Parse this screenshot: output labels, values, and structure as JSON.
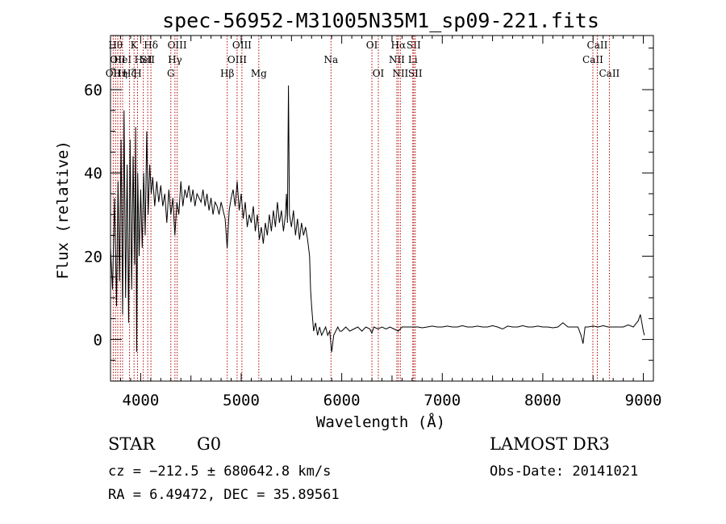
{
  "chart_data": {
    "type": "line",
    "title": "spec-56952-M31005N35M1_sp09-221.fits",
    "xlabel": "Wavelength (Å)",
    "ylabel": "Flux (relative)",
    "xlim": [
      3700,
      9100
    ],
    "ylim": [
      -10,
      73
    ],
    "xticks": [
      4000,
      5000,
      6000,
      7000,
      8000,
      9000
    ],
    "yticks": [
      0,
      20,
      40,
      60
    ],
    "grid": false,
    "series": [
      {
        "points": [
          [
            3700,
            22
          ],
          [
            3720,
            12
          ],
          [
            3740,
            34
          ],
          [
            3760,
            8
          ],
          [
            3775,
            38
          ],
          [
            3790,
            14
          ],
          [
            3805,
            48
          ],
          [
            3820,
            6
          ],
          [
            3835,
            55
          ],
          [
            3850,
            10
          ],
          [
            3865,
            42
          ],
          [
            3880,
            4
          ],
          [
            3895,
            48
          ],
          [
            3910,
            12
          ],
          [
            3925,
            44
          ],
          [
            3940,
            18
          ],
          [
            3950,
            51
          ],
          [
            3960,
            -3
          ],
          [
            3970,
            40
          ],
          [
            3985,
            20
          ],
          [
            4000,
            36
          ],
          [
            4015,
            22
          ],
          [
            4030,
            40
          ],
          [
            4045,
            25
          ],
          [
            4060,
            50
          ],
          [
            4075,
            30
          ],
          [
            4090,
            42
          ],
          [
            4105,
            35
          ],
          [
            4120,
            39
          ],
          [
            4140,
            32
          ],
          [
            4160,
            38
          ],
          [
            4180,
            33
          ],
          [
            4200,
            37
          ],
          [
            4220,
            32
          ],
          [
            4240,
            35
          ],
          [
            4260,
            28
          ],
          [
            4280,
            36
          ],
          [
            4300,
            30
          ],
          [
            4320,
            34
          ],
          [
            4340,
            25
          ],
          [
            4360,
            33
          ],
          [
            4380,
            30
          ],
          [
            4400,
            38
          ],
          [
            4420,
            32
          ],
          [
            4440,
            36
          ],
          [
            4460,
            34
          ],
          [
            4480,
            37
          ],
          [
            4500,
            33
          ],
          [
            4520,
            36
          ],
          [
            4540,
            32
          ],
          [
            4560,
            35
          ],
          [
            4580,
            34
          ],
          [
            4600,
            33
          ],
          [
            4620,
            36
          ],
          [
            4640,
            32
          ],
          [
            4660,
            35
          ],
          [
            4680,
            31
          ],
          [
            4700,
            34
          ],
          [
            4720,
            30
          ],
          [
            4740,
            33
          ],
          [
            4760,
            32
          ],
          [
            4780,
            30
          ],
          [
            4800,
            33
          ],
          [
            4820,
            31
          ],
          [
            4840,
            29
          ],
          [
            4860,
            22
          ],
          [
            4880,
            31
          ],
          [
            4900,
            34
          ],
          [
            4920,
            36
          ],
          [
            4940,
            32
          ],
          [
            4960,
            38
          ],
          [
            4980,
            31
          ],
          [
            5000,
            35
          ],
          [
            5020,
            29
          ],
          [
            5040,
            33
          ],
          [
            5060,
            27
          ],
          [
            5080,
            30
          ],
          [
            5100,
            28
          ],
          [
            5120,
            32
          ],
          [
            5140,
            26
          ],
          [
            5160,
            30
          ],
          [
            5180,
            24
          ],
          [
            5200,
            27
          ],
          [
            5220,
            23
          ],
          [
            5240,
            28
          ],
          [
            5260,
            25
          ],
          [
            5280,
            30
          ],
          [
            5300,
            26
          ],
          [
            5320,
            31
          ],
          [
            5340,
            27
          ],
          [
            5360,
            33
          ],
          [
            5380,
            28
          ],
          [
            5400,
            31
          ],
          [
            5420,
            26
          ],
          [
            5440,
            30
          ],
          [
            5450,
            35
          ],
          [
            5460,
            28
          ],
          [
            5470,
            61
          ],
          [
            5480,
            30
          ],
          [
            5500,
            27
          ],
          [
            5520,
            31
          ],
          [
            5540,
            25
          ],
          [
            5560,
            29
          ],
          [
            5580,
            24
          ],
          [
            5600,
            28
          ],
          [
            5620,
            25
          ],
          [
            5640,
            27
          ],
          [
            5660,
            24
          ],
          [
            5680,
            20
          ],
          [
            5690,
            12
          ],
          [
            5700,
            8
          ],
          [
            5710,
            5
          ],
          [
            5720,
            2
          ],
          [
            5740,
            4
          ],
          [
            5760,
            1
          ],
          [
            5780,
            3
          ],
          [
            5800,
            1
          ],
          [
            5820,
            2
          ],
          [
            5840,
            3
          ],
          [
            5860,
            1
          ],
          [
            5880,
            2
          ],
          [
            5900,
            -3
          ],
          [
            5920,
            1
          ],
          [
            5940,
            2
          ],
          [
            5960,
            3
          ],
          [
            5980,
            2
          ],
          [
            6000,
            2
          ],
          [
            6040,
            3
          ],
          [
            6080,
            2
          ],
          [
            6120,
            2.5
          ],
          [
            6160,
            3
          ],
          [
            6200,
            2
          ],
          [
            6240,
            3
          ],
          [
            6280,
            2.5
          ],
          [
            6300,
            1.5
          ],
          [
            6320,
            3
          ],
          [
            6360,
            2.5
          ],
          [
            6400,
            3
          ],
          [
            6440,
            2.5
          ],
          [
            6480,
            3
          ],
          [
            6520,
            2.5
          ],
          [
            6563,
            2
          ],
          [
            6600,
            3
          ],
          [
            6640,
            3
          ],
          [
            6680,
            3
          ],
          [
            6720,
            3
          ],
          [
            6760,
            3
          ],
          [
            6800,
            2.8
          ],
          [
            6850,
            3
          ],
          [
            6900,
            3.2
          ],
          [
            6950,
            3
          ],
          [
            7000,
            3
          ],
          [
            7050,
            3.2
          ],
          [
            7100,
            3
          ],
          [
            7150,
            3
          ],
          [
            7200,
            3.3
          ],
          [
            7250,
            3
          ],
          [
            7300,
            3
          ],
          [
            7350,
            3.2
          ],
          [
            7400,
            3
          ],
          [
            7450,
            3
          ],
          [
            7500,
            3.3
          ],
          [
            7550,
            3
          ],
          [
            7600,
            2.5
          ],
          [
            7650,
            3.2
          ],
          [
            7700,
            3
          ],
          [
            7750,
            3
          ],
          [
            7800,
            3.3
          ],
          [
            7850,
            3
          ],
          [
            7900,
            3
          ],
          [
            7950,
            3.2
          ],
          [
            8000,
            3
          ],
          [
            8050,
            3
          ],
          [
            8100,
            2.8
          ],
          [
            8150,
            3
          ],
          [
            8200,
            4
          ],
          [
            8250,
            3
          ],
          [
            8300,
            3
          ],
          [
            8350,
            3
          ],
          [
            8380,
            1
          ],
          [
            8400,
            -1
          ],
          [
            8420,
            3
          ],
          [
            8450,
            3
          ],
          [
            8500,
            3.2
          ],
          [
            8550,
            3
          ],
          [
            8600,
            3.3
          ],
          [
            8650,
            3
          ],
          [
            8700,
            3
          ],
          [
            8750,
            3
          ],
          [
            8800,
            3
          ],
          [
            8850,
            3.5
          ],
          [
            8900,
            3
          ],
          [
            8950,
            4.5
          ],
          [
            8970,
            6
          ],
          [
            8985,
            4
          ],
          [
            9000,
            2
          ],
          [
            9010,
            1
          ]
        ]
      }
    ],
    "line_markers": [
      {
        "x": 3727,
        "label": "OII",
        "row": 3
      },
      {
        "x": 3750,
        "label": "Hθ",
        "row": 1
      },
      {
        "x": 3772,
        "label": "OII",
        "row": 2
      },
      {
        "x": 3798,
        "label": "Hη",
        "row": 3
      },
      {
        "x": 3820,
        "label": "HeI",
        "row": 2
      },
      {
        "x": 3889,
        "label": "Hζ",
        "row": 3
      },
      {
        "x": 3934,
        "label": "K",
        "row": 1
      },
      {
        "x": 3969,
        "label": "H",
        "row": 3
      },
      {
        "x": 4026,
        "label": "HeI",
        "row": 2
      },
      {
        "x": 4070,
        "label": "SII",
        "row": 2
      },
      {
        "x": 4102,
        "label": "Hδ",
        "row": 1
      },
      {
        "x": 4300,
        "label": "G",
        "row": 3
      },
      {
        "x": 4341,
        "label": "Hγ",
        "row": 2
      },
      {
        "x": 4363,
        "label": "OIII",
        "row": 1
      },
      {
        "x": 4861,
        "label": "Hβ",
        "row": 3
      },
      {
        "x": 4959,
        "label": "OIII",
        "row": 2
      },
      {
        "x": 5007,
        "label": "OIII",
        "row": 1
      },
      {
        "x": 5175,
        "label": "Mg",
        "row": 3
      },
      {
        "x": 5893,
        "label": "Na",
        "row": 2
      },
      {
        "x": 6300,
        "label": "OI",
        "row": 1
      },
      {
        "x": 6364,
        "label": "OI",
        "row": 3
      },
      {
        "x": 6548,
        "label": "NII",
        "row": 2
      },
      {
        "x": 6563,
        "label": "Hα",
        "row": 1
      },
      {
        "x": 6583,
        "label": "NII",
        "row": 3
      },
      {
        "x": 6707,
        "label": "Li",
        "row": 2
      },
      {
        "x": 6716,
        "label": "SII",
        "row": 1
      },
      {
        "x": 6731,
        "label": "SII",
        "row": 3
      },
      {
        "x": 8498,
        "label": "CaII",
        "row": 2
      },
      {
        "x": 8542,
        "label": "CaII",
        "row": 1
      },
      {
        "x": 8662,
        "label": "CaII",
        "row": 3
      }
    ],
    "colors": {
      "axis": "#000000",
      "trace": "#000000",
      "marker": "#b30000"
    }
  },
  "info": {
    "class": "STAR",
    "subclass": "G0",
    "survey": "LAMOST DR3",
    "cz": "cz = −212.5 ± 680642.8 km/s",
    "obsdate": "Obs-Date: 20141021",
    "radec": "RA =   6.49472, DEC =  35.89561"
  }
}
